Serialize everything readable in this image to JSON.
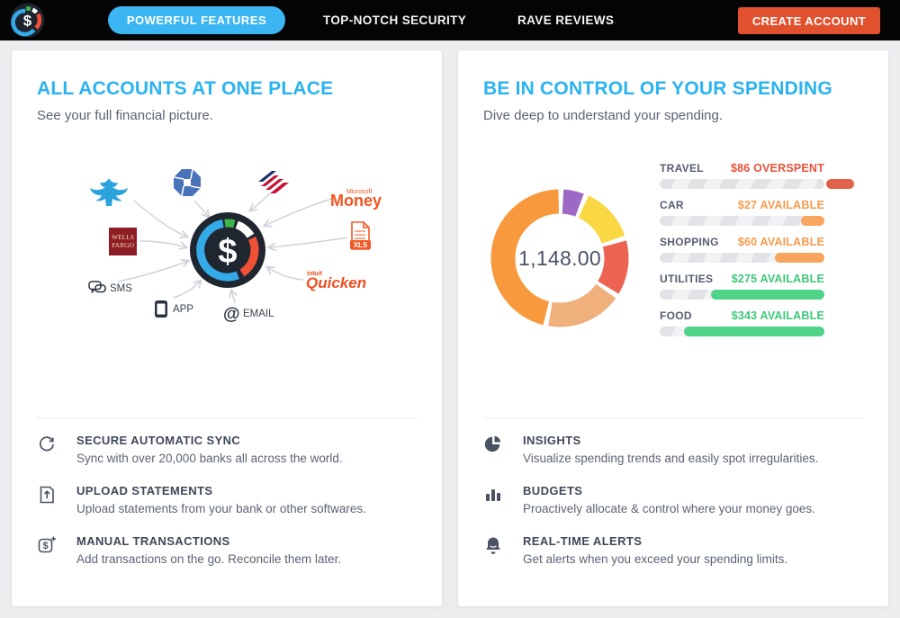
{
  "nav": {
    "logo_symbol": "$",
    "items": [
      {
        "label": "POWERFUL FEATURES",
        "active": true
      },
      {
        "label": "TOP-NOTCH SECURITY",
        "active": false
      },
      {
        "label": "RAVE REVIEWS",
        "active": false
      }
    ],
    "cta_label": "CREATE ACCOUNT",
    "colors": {
      "active_pill": "#3bb6f2",
      "cta": "#e2512e",
      "bar": "#040404"
    }
  },
  "left_card": {
    "title": "ALL ACCOUNTS AT ONE PLACE",
    "subtitle": "See your full financial picture.",
    "diagram": {
      "center_symbol": "$",
      "labels": {
        "microsoft_small": "Microsoft",
        "money": "Money",
        "wells_line1": "WELLS",
        "wells_line2": "FARGO",
        "xls": "XLS",
        "intuit": "intuit",
        "quicken": "Quicken",
        "sms": "SMS",
        "app": "APP",
        "email": "EMAIL",
        "email_at": "@"
      }
    },
    "features": [
      {
        "icon": "sync-icon",
        "title": "SECURE AUTOMATIC SYNC",
        "desc": "Sync with over 20,000 banks all across the world."
      },
      {
        "icon": "upload-icon",
        "title": "UPLOAD STATEMENTS",
        "desc": "Upload statements from your bank or other softwares."
      },
      {
        "icon": "manual-transactions-icon",
        "title": "MANUAL TRANSACTIONS",
        "desc": "Add transactions on the go. Reconcile them later."
      }
    ]
  },
  "right_card": {
    "title": "BE IN CONTROL OF YOUR SPENDING",
    "subtitle": "Dive deep to understand your spending.",
    "features": [
      {
        "icon": "insights-icon",
        "title": "INSIGHTS",
        "desc": "Visualize spending trends and easily spot irregularities."
      },
      {
        "icon": "budgets-icon",
        "title": "BUDGETS",
        "desc": "Proactively allocate & control where your money goes."
      },
      {
        "icon": "alerts-icon",
        "title": "REAL-TIME ALERTS",
        "desc": "Get alerts when you exceed your spending limits."
      }
    ]
  },
  "chart_data": [
    {
      "type": "pie",
      "variant": "donut",
      "title": "",
      "center_label": "1,148.00",
      "start_angle_deg": 1,
      "gap_percent": 1.2,
      "legend": false,
      "segments": [
        {
          "name": "segment-purple",
          "percent": 6,
          "color": "#9c69c4"
        },
        {
          "name": "segment-yellow",
          "percent": 14,
          "color": "#f9d843"
        },
        {
          "name": "segment-red",
          "percent": 14,
          "color": "#ec6351"
        },
        {
          "name": "segment-tan",
          "percent": 19,
          "color": "#efb07c"
        },
        {
          "name": "segment-orange",
          "percent": 47,
          "color": "#f8993e"
        }
      ]
    },
    {
      "type": "bar",
      "orientation": "horizontal",
      "title": "",
      "rows": [
        {
          "category": "TRAVEL",
          "value_label": "$86 OVERSPENT",
          "amount": 86,
          "status": "overspent",
          "fill_percent": 17,
          "bar_color": "#e2614b",
          "text_color": "#e8513b"
        },
        {
          "category": "CAR",
          "value_label": "$27 AVAILABLE",
          "amount": 27,
          "status": "available",
          "fill_percent": 14,
          "bar_color": "#f8a55f",
          "text_color": "#f89a4d"
        },
        {
          "category": "SHOPPING",
          "value_label": "$60 AVAILABLE",
          "amount": 60,
          "status": "available",
          "fill_percent": 30,
          "bar_color": "#f8a55f",
          "text_color": "#f89a4d"
        },
        {
          "category": "UTILITIES",
          "value_label": "$275 AVAILABLE",
          "amount": 275,
          "status": "available",
          "fill_percent": 69,
          "bar_color": "#4fd488",
          "text_color": "#3dc878"
        },
        {
          "category": "FOOD",
          "value_label": "$343 AVAILABLE",
          "amount": 343,
          "status": "available",
          "fill_percent": 85,
          "bar_color": "#4fd488",
          "text_color": "#3dc878"
        }
      ]
    }
  ]
}
